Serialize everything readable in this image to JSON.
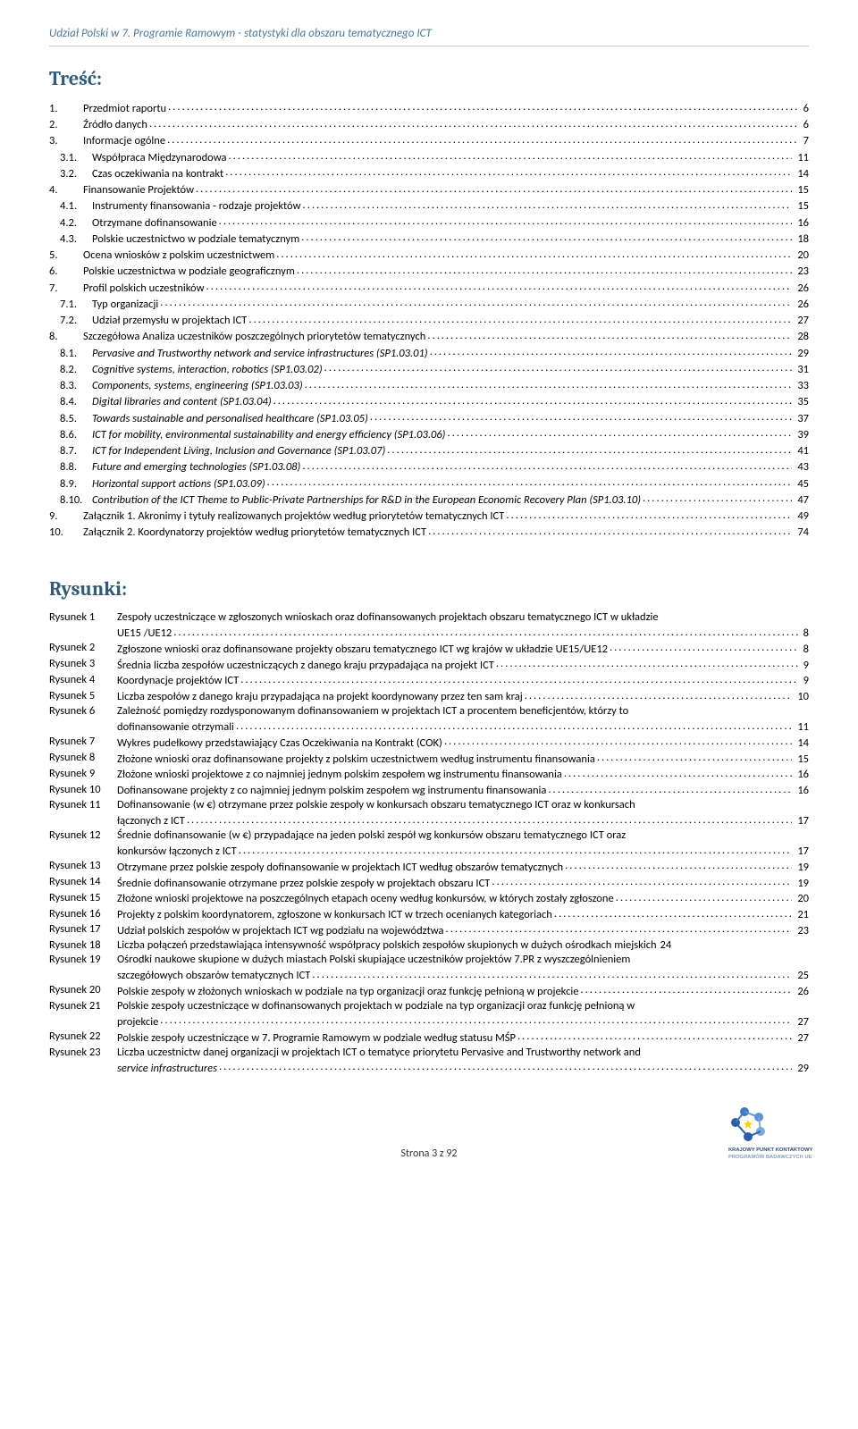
{
  "header": "Udział Polski w 7. Programie Ramowym - statystyki dla obszaru tematycznego ICT",
  "headings": {
    "toc": "Treść:",
    "figures": "Rysunki:"
  },
  "toc": [
    {
      "n": "1.",
      "t": "Przedmiot raportu",
      "p": "6"
    },
    {
      "n": "2.",
      "t": "Źródło danych",
      "p": "6"
    },
    {
      "n": "3.",
      "t": "Informacje ogólne",
      "p": "7"
    },
    {
      "n": "3.1.",
      "t": "Współpraca Międzynarodowa",
      "p": "11",
      "indent": true
    },
    {
      "n": "3.2.",
      "t": "Czas oczekiwania na kontrakt",
      "p": "14",
      "indent": true
    },
    {
      "n": "4.",
      "t": "Finansowanie Projektów",
      "p": "15"
    },
    {
      "n": "4.1.",
      "t": "Instrumenty finansowania - rodzaje projektów",
      "p": "15",
      "indent": true
    },
    {
      "n": "4.2.",
      "t": "Otrzymane dofinansowanie",
      "p": "16",
      "indent": true
    },
    {
      "n": "4.3.",
      "t": "Polskie uczestnictwo w podziale tematycznym",
      "p": "18",
      "indent": true
    },
    {
      "n": "5.",
      "t": "Ocena wniosków z polskim uczestnictwem",
      "p": "20"
    },
    {
      "n": "6.",
      "t": "Polskie uczestnictwa w podziale geograficznym",
      "p": "23"
    },
    {
      "n": "7.",
      "t": "Profil polskich uczestników",
      "p": "26"
    },
    {
      "n": "7.1.",
      "t": "Typ organizacji",
      "p": "26",
      "indent": true
    },
    {
      "n": "7.2.",
      "t": "Udział przemysłu w projektach ICT",
      "p": "27",
      "indent": true
    },
    {
      "n": "8.",
      "t": "Szczegółowa Analiza uczestników poszczególnych priorytetów tematycznych",
      "p": "28"
    },
    {
      "n": "8.1.",
      "t": "Pervasive and Trustworthy network and service infrastructures (SP1.03.01)",
      "p": "29",
      "indent": true,
      "italic": true
    },
    {
      "n": "8.2.",
      "t": "Cognitive systems, interaction, robotics (SP1.03.02)",
      "p": "31",
      "indent": true,
      "italic": true
    },
    {
      "n": "8.3.",
      "t": "Components, systems, engineering (SP1.03.03)",
      "p": "33",
      "indent": true,
      "italic": true
    },
    {
      "n": "8.4.",
      "t": "Digital libraries and content (SP1.03.04)",
      "p": "35",
      "indent": true,
      "italic": true
    },
    {
      "n": "8.5.",
      "t": "Towards sustainable and personalised healthcare (SP1.03.05)",
      "p": "37",
      "indent": true,
      "italic": true
    },
    {
      "n": "8.6.",
      "t": "ICT for mobility, environmental sustainability and energy efficiency (SP1.03.06)",
      "p": "39",
      "indent": true,
      "italic": true
    },
    {
      "n": "8.7.",
      "t": "ICT for Independent Living, Inclusion and Governance (SP1.03.07)",
      "p": "41",
      "indent": true,
      "italic": true
    },
    {
      "n": "8.8.",
      "t": "Future and emerging technologies (SP1.03.08)",
      "p": "43",
      "indent": true,
      "italic": true
    },
    {
      "n": "8.9.",
      "t": "Horizontal support actions (SP1.03.09)",
      "p": "45",
      "indent": true,
      "italic": true
    },
    {
      "n": "8.10.",
      "t": "Contribution of the ICT Theme to Public-Private Partnerships for R&D in the European Economic Recovery Plan (SP1.03.10)",
      "p": "47",
      "indent": true,
      "italic": true
    },
    {
      "n": "9.",
      "t": "Załącznik 1. Akronimy i tytuły realizowanych projektów według priorytetów tematycznych ICT",
      "p": "49"
    },
    {
      "n": "10.",
      "t": "Załącznik 2. Koordynatorzy projektów według priorytetów tematycznych ICT",
      "p": "74"
    }
  ],
  "figures": [
    {
      "n": "Rysunek 1",
      "lines": [
        "Zespoły uczestniczące w zgłoszonych wnioskach oraz dofinansowanych projektach obszaru tematycznego ICT w układzie"
      ],
      "last": "UE15 /UE12",
      "p": "8"
    },
    {
      "n": "Rysunek 2",
      "last": "Zgłoszone wnioski oraz dofinansowane projekty obszaru tematycznego ICT wg krajów w układzie UE15/UE12",
      "p": "8"
    },
    {
      "n": "Rysunek 3",
      "last": "Średnia liczba zespołów uczestniczących z danego kraju przypadająca na projekt ICT",
      "p": "9"
    },
    {
      "n": "Rysunek 4",
      "last": "Koordynacje projektów ICT",
      "p": "9"
    },
    {
      "n": "Rysunek 5",
      "last": "Liczba zespołów z danego kraju przypadająca na projekt koordynowany przez ten sam kraj",
      "p": "10"
    },
    {
      "n": "Rysunek 6",
      "lines": [
        "Zależność pomiędzy rozdysponowanym dofinansowaniem w projektach ICT a procentem beneficjentów, którzy to"
      ],
      "last": "dofinansowanie otrzymali",
      "p": "11"
    },
    {
      "n": "Rysunek 7",
      "last": "Wykres pudełkowy przedstawiający Czas Oczekiwania na Kontrakt (COK)",
      "p": "14"
    },
    {
      "n": "Rysunek 8",
      "last": "Złożone wnioski oraz dofinansowane projekty z polskim uczestnictwem według instrumentu finansowania",
      "p": "15"
    },
    {
      "n": "Rysunek 9",
      "last": "Złożone wnioski projektowe z co najmniej jednym polskim zespołem wg instrumentu finansowania",
      "p": "16"
    },
    {
      "n": "Rysunek 10",
      "last": "Dofinansowane projekty z co najmniej jednym polskim zespołem wg instrumentu finansowania",
      "p": "16"
    },
    {
      "n": "Rysunek 11",
      "lines": [
        "Dofinansowanie (w €) otrzymane przez polskie zespoły w konkursach obszaru tematycznego ICT oraz w konkursach"
      ],
      "last": "łączonych z ICT",
      "p": "17"
    },
    {
      "n": "Rysunek 12",
      "lines": [
        "Średnie dofinansowanie (w €) przypadające na jeden polski zespół wg konkursów obszaru tematycznego ICT oraz"
      ],
      "last": "konkursów łączonych z ICT",
      "p": "17"
    },
    {
      "n": "Rysunek 13",
      "last": "Otrzymane przez polskie zespoły dofinansowanie w projektach ICT według obszarów tematycznych",
      "p": "19"
    },
    {
      "n": "Rysunek 14",
      "last": "Średnie dofinansowanie otrzymane przez polskie zespoły w projektach obszaru ICT",
      "p": "19"
    },
    {
      "n": "Rysunek 15",
      "last": "Złożone wnioski projektowe na poszczególnych etapach oceny według konkursów, w których zostały zgłoszone",
      "p": "20"
    },
    {
      "n": "Rysunek 16",
      "last": "Projekty z polskim koordynatorem, zgłoszone w konkursach ICT w trzech ocenianych kategoriach",
      "p": "21"
    },
    {
      "n": "Rysunek 17",
      "last": "Udział polskich zespołów w projektach ICT wg podziału na województwa",
      "p": "23"
    },
    {
      "n": "Rysunek 18",
      "last": "Liczba połączeń przedstawiająca intensywność współpracy polskich zespołów skupionych w dużych ośrodkach miejskich",
      "p": "24",
      "tight": true
    },
    {
      "n": "Rysunek 19",
      "lines": [
        "Ośrodki naukowe skupione w dużych miastach Polski skupiające uczestników projektów 7.PR z wyszczególnieniem"
      ],
      "last": "szczegółowych obszarów tematycznych ICT",
      "p": "25"
    },
    {
      "n": "Rysunek 20",
      "last": "Polskie zespoły w złożonych wnioskach w podziale na typ organizacji oraz funkcję pełnioną w projekcie",
      "p": "26"
    },
    {
      "n": "Rysunek 21",
      "lines": [
        "Polskie zespoły uczestniczące w dofinansowanych projektach w podziale na typ organizacji oraz funkcję pełnioną w"
      ],
      "last": "projekcie",
      "p": "27"
    },
    {
      "n": "Rysunek 22",
      "last": "Polskie zespoły uczestniczące w 7. Programie Ramowym w podziale według statusu MŚP",
      "p": "27"
    },
    {
      "n": "Rysunek 23",
      "lines": [
        "Liczba uczestnictw danej organizacji w projektach ICT o tematyce priorytetu  Pervasive and Trustworthy network and"
      ],
      "last": "service infrastructures",
      "p": "29",
      "lastItalic": true
    }
  ],
  "footer": {
    "page": "Strona 3 z 92",
    "logo": {
      "swirl_colors": [
        "#2b5da8",
        "#3e7bc0",
        "#5a94d4",
        "#7aabdd"
      ],
      "star_color": "#ffcc00",
      "text1": "KRAJOWY PUNKT KONTAKTOWY",
      "text2": "PROGRAMÓW BADAWCZYCH UE",
      "text1_color": "#2a4d7a",
      "text2_color": "#8aa0b8"
    }
  },
  "colors": {
    "header": "#4a7a9a",
    "heading": "#2e5a7e",
    "text": "#000000",
    "rule": "#b8c8d4"
  }
}
